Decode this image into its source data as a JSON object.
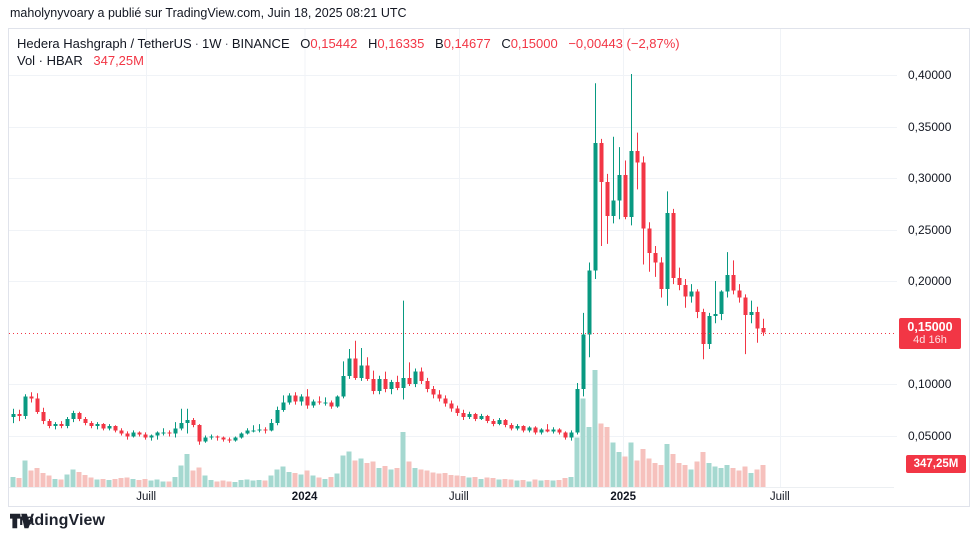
{
  "attribution": "maholynyvoary a publié sur TradingView.com, Juin 18, 2025 08:21 UTC",
  "legend": {
    "symbol_title": "Hedera Hashgraph / TetherUS",
    "separator": "·",
    "interval": "1W",
    "exchange": "BINANCE",
    "ohlc": [
      {
        "label": "O",
        "value": "0,15442"
      },
      {
        "label": "H",
        "value": "0,16335"
      },
      {
        "label": "B",
        "value": "0,14677"
      },
      {
        "label": "C",
        "value": "0,15000"
      }
    ],
    "change": "−0,00443 (−2,87%)",
    "volume_label": "Vol · HBAR",
    "volume_value": "347,25M"
  },
  "colors": {
    "up": "#089981",
    "down": "#f23645",
    "vol_up": "#a5d8d0",
    "vol_down": "#f6c1bd",
    "grid": "#f0f3f7",
    "text": "#131722",
    "badge": "#f23645",
    "border": "#e0e3eb",
    "dotted_line": "#f23645"
  },
  "y_axis": {
    "ticks": [
      {
        "label": "0,40000",
        "value": 0.4
      },
      {
        "label": "0,35000",
        "value": 0.35
      },
      {
        "label": "0,30000",
        "value": 0.3
      },
      {
        "label": "0,25000",
        "value": 0.25
      },
      {
        "label": "0,20000",
        "value": 0.2
      },
      {
        "label": "0,10000",
        "value": 0.1
      },
      {
        "label": "0,05000",
        "value": 0.05
      }
    ]
  },
  "x_axis": {
    "ticks": [
      {
        "label": "Juill",
        "index": 22.2,
        "year": false
      },
      {
        "label": "2024",
        "index": 48.6,
        "year": true
      },
      {
        "label": "Juill",
        "index": 74.3,
        "year": false
      },
      {
        "label": "2025",
        "index": 101.7,
        "year": true
      },
      {
        "label": "Juill",
        "index": 127.8,
        "year": false
      }
    ]
  },
  "price_badge": {
    "price": "0,15000",
    "countdown": "4d 16h",
    "value": 0.15
  },
  "volume_badge": {
    "value": "347,25M"
  },
  "logo": {
    "text": "TradingView"
  },
  "chart_data": {
    "type": "candlestick+volume",
    "title": "Hedera Hashgraph / TetherUS",
    "interval": "1W",
    "exchange": "BINANCE",
    "last": {
      "open": 0.15442,
      "high": 0.16335,
      "low": 0.14677,
      "close": 0.15,
      "change": -0.00443,
      "change_pct": -2.87,
      "volume_m": 347.25
    },
    "price_gridlines": [
      0.4,
      0.35,
      0.3,
      0.25,
      0.2,
      0.1,
      0.05
    ],
    "current_price_line": 0.15,
    "volume_unit": "M",
    "candles_format": [
      "open",
      "high",
      "low",
      "close",
      "volume_m"
    ],
    "candles": [
      [
        0.068,
        0.076,
        0.062,
        0.071,
        160
      ],
      [
        0.071,
        0.075,
        0.064,
        0.069,
        140
      ],
      [
        0.069,
        0.09,
        0.066,
        0.088,
        420
      ],
      [
        0.088,
        0.092,
        0.082,
        0.086,
        260
      ],
      [
        0.086,
        0.091,
        0.071,
        0.073,
        300
      ],
      [
        0.073,
        0.077,
        0.061,
        0.064,
        220
      ],
      [
        0.064,
        0.066,
        0.057,
        0.059,
        180
      ],
      [
        0.059,
        0.063,
        0.056,
        0.061,
        130
      ],
      [
        0.061,
        0.064,
        0.057,
        0.059,
        120
      ],
      [
        0.059,
        0.068,
        0.057,
        0.066,
        200
      ],
      [
        0.066,
        0.074,
        0.063,
        0.072,
        280
      ],
      [
        0.072,
        0.073,
        0.064,
        0.066,
        240
      ],
      [
        0.066,
        0.068,
        0.06,
        0.062,
        190
      ],
      [
        0.062,
        0.064,
        0.057,
        0.059,
        150
      ],
      [
        0.059,
        0.063,
        0.056,
        0.061,
        120
      ],
      [
        0.061,
        0.062,
        0.055,
        0.057,
        130
      ],
      [
        0.057,
        0.061,
        0.055,
        0.059,
        110
      ],
      [
        0.059,
        0.06,
        0.053,
        0.055,
        130
      ],
      [
        0.055,
        0.057,
        0.05,
        0.052,
        140
      ],
      [
        0.052,
        0.054,
        0.046,
        0.049,
        150
      ],
      [
        0.049,
        0.055,
        0.048,
        0.053,
        130
      ],
      [
        0.053,
        0.054,
        0.049,
        0.051,
        110
      ],
      [
        0.051,
        0.053,
        0.046,
        0.048,
        130
      ],
      [
        0.048,
        0.051,
        0.045,
        0.05,
        100
      ],
      [
        0.05,
        0.054,
        0.046,
        0.053,
        120
      ],
      [
        0.053,
        0.057,
        0.05,
        0.053,
        90
      ],
      [
        0.053,
        0.055,
        0.049,
        0.052,
        90
      ],
      [
        0.052,
        0.063,
        0.048,
        0.057,
        160
      ],
      [
        0.057,
        0.076,
        0.055,
        0.062,
        340
      ],
      [
        0.062,
        0.076,
        0.052,
        0.065,
        520
      ],
      [
        0.065,
        0.067,
        0.058,
        0.06,
        260
      ],
      [
        0.06,
        0.061,
        0.041,
        0.044,
        310
      ],
      [
        0.044,
        0.05,
        0.043,
        0.048,
        180
      ],
      [
        0.048,
        0.051,
        0.046,
        0.049,
        110
      ],
      [
        0.049,
        0.05,
        0.045,
        0.048,
        90
      ],
      [
        0.048,
        0.049,
        0.044,
        0.046,
        100
      ],
      [
        0.046,
        0.048,
        0.043,
        0.045,
        90
      ],
      [
        0.045,
        0.049,
        0.044,
        0.048,
        80
      ],
      [
        0.048,
        0.053,
        0.047,
        0.052,
        110
      ],
      [
        0.052,
        0.057,
        0.051,
        0.055,
        120
      ],
      [
        0.055,
        0.06,
        0.053,
        0.055,
        100
      ],
      [
        0.055,
        0.061,
        0.053,
        0.056,
        110
      ],
      [
        0.056,
        0.058,
        0.052,
        0.055,
        100
      ],
      [
        0.055,
        0.066,
        0.054,
        0.062,
        180
      ],
      [
        0.062,
        0.078,
        0.06,
        0.075,
        280
      ],
      [
        0.075,
        0.089,
        0.073,
        0.082,
        320
      ],
      [
        0.082,
        0.091,
        0.08,
        0.089,
        240
      ],
      [
        0.089,
        0.092,
        0.08,
        0.083,
        220
      ],
      [
        0.083,
        0.09,
        0.079,
        0.088,
        200
      ],
      [
        0.088,
        0.095,
        0.076,
        0.079,
        260
      ],
      [
        0.079,
        0.085,
        0.077,
        0.083,
        180
      ],
      [
        0.083,
        0.088,
        0.08,
        0.082,
        150
      ],
      [
        0.082,
        0.087,
        0.079,
        0.082,
        130
      ],
      [
        0.082,
        0.084,
        0.076,
        0.078,
        160
      ],
      [
        0.078,
        0.089,
        0.077,
        0.088,
        210
      ],
      [
        0.088,
        0.122,
        0.086,
        0.108,
        500
      ],
      [
        0.108,
        0.134,
        0.105,
        0.125,
        560
      ],
      [
        0.125,
        0.142,
        0.104,
        0.106,
        420
      ],
      [
        0.106,
        0.135,
        0.103,
        0.118,
        450
      ],
      [
        0.118,
        0.126,
        0.103,
        0.105,
        380
      ],
      [
        0.105,
        0.113,
        0.09,
        0.093,
        400
      ],
      [
        0.093,
        0.108,
        0.09,
        0.105,
        300
      ],
      [
        0.105,
        0.112,
        0.092,
        0.095,
        330
      ],
      [
        0.095,
        0.104,
        0.09,
        0.102,
        280
      ],
      [
        0.102,
        0.108,
        0.094,
        0.096,
        300
      ],
      [
        0.096,
        0.181,
        0.085,
        0.106,
        870
      ],
      [
        0.106,
        0.121,
        0.098,
        0.1,
        400
      ],
      [
        0.1,
        0.115,
        0.097,
        0.112,
        300
      ],
      [
        0.112,
        0.116,
        0.1,
        0.103,
        280
      ],
      [
        0.103,
        0.106,
        0.092,
        0.095,
        260
      ],
      [
        0.095,
        0.098,
        0.086,
        0.09,
        230
      ],
      [
        0.09,
        0.094,
        0.083,
        0.086,
        210
      ],
      [
        0.086,
        0.089,
        0.078,
        0.081,
        220
      ],
      [
        0.081,
        0.084,
        0.073,
        0.076,
        190
      ],
      [
        0.076,
        0.079,
        0.069,
        0.072,
        180
      ],
      [
        0.072,
        0.075,
        0.065,
        0.068,
        170
      ],
      [
        0.068,
        0.073,
        0.066,
        0.071,
        150
      ],
      [
        0.071,
        0.072,
        0.064,
        0.066,
        160
      ],
      [
        0.066,
        0.071,
        0.065,
        0.069,
        130
      ],
      [
        0.069,
        0.07,
        0.062,
        0.064,
        150
      ],
      [
        0.064,
        0.066,
        0.059,
        0.061,
        140
      ],
      [
        0.061,
        0.067,
        0.06,
        0.065,
        120
      ],
      [
        0.065,
        0.066,
        0.058,
        0.06,
        130
      ],
      [
        0.06,
        0.062,
        0.055,
        0.057,
        120
      ],
      [
        0.057,
        0.061,
        0.055,
        0.059,
        100
      ],
      [
        0.059,
        0.06,
        0.053,
        0.055,
        110
      ],
      [
        0.055,
        0.059,
        0.053,
        0.058,
        90
      ],
      [
        0.058,
        0.059,
        0.051,
        0.053,
        120
      ],
      [
        0.053,
        0.057,
        0.051,
        0.056,
        100
      ],
      [
        0.056,
        0.061,
        0.053,
        0.054,
        110
      ],
      [
        0.054,
        0.058,
        0.052,
        0.056,
        100
      ],
      [
        0.056,
        0.057,
        0.051,
        0.053,
        110
      ],
      [
        0.053,
        0.054,
        0.046,
        0.048,
        140
      ],
      [
        0.048,
        0.055,
        0.045,
        0.053,
        160
      ],
      [
        0.053,
        0.101,
        0.051,
        0.095,
        780
      ],
      [
        0.095,
        0.169,
        0.088,
        0.148,
        1400
      ],
      [
        0.148,
        0.218,
        0.126,
        0.21,
        950
      ],
      [
        0.21,
        0.392,
        0.202,
        0.334,
        1850
      ],
      [
        0.334,
        0.338,
        0.234,
        0.296,
        1000
      ],
      [
        0.296,
        0.304,
        0.236,
        0.263,
        950
      ],
      [
        0.263,
        0.34,
        0.256,
        0.278,
        700
      ],
      [
        0.278,
        0.33,
        0.26,
        0.303,
        550
      ],
      [
        0.303,
        0.317,
        0.26,
        0.262,
        480
      ],
      [
        0.262,
        0.401,
        0.254,
        0.326,
        700
      ],
      [
        0.326,
        0.344,
        0.289,
        0.315,
        420
      ],
      [
        0.315,
        0.321,
        0.216,
        0.251,
        600
      ],
      [
        0.251,
        0.257,
        0.209,
        0.227,
        450
      ],
      [
        0.227,
        0.234,
        0.204,
        0.218,
        380
      ],
      [
        0.218,
        0.223,
        0.184,
        0.192,
        350
      ],
      [
        0.192,
        0.287,
        0.176,
        0.266,
        680
      ],
      [
        0.266,
        0.27,
        0.197,
        0.203,
        520
      ],
      [
        0.203,
        0.213,
        0.191,
        0.196,
        380
      ],
      [
        0.196,
        0.202,
        0.174,
        0.185,
        350
      ],
      [
        0.185,
        0.197,
        0.179,
        0.19,
        280
      ],
      [
        0.19,
        0.192,
        0.164,
        0.17,
        400
      ],
      [
        0.17,
        0.173,
        0.124,
        0.139,
        550
      ],
      [
        0.139,
        0.169,
        0.134,
        0.166,
        380
      ],
      [
        0.166,
        0.2,
        0.159,
        0.168,
        320
      ],
      [
        0.168,
        0.191,
        0.162,
        0.19,
        300
      ],
      [
        0.19,
        0.228,
        0.184,
        0.206,
        350
      ],
      [
        0.206,
        0.22,
        0.187,
        0.191,
        300
      ],
      [
        0.191,
        0.197,
        0.179,
        0.184,
        260
      ],
      [
        0.184,
        0.187,
        0.129,
        0.167,
        320
      ],
      [
        0.167,
        0.181,
        0.159,
        0.17,
        220
      ],
      [
        0.17,
        0.175,
        0.14,
        0.154,
        280
      ],
      [
        0.15442,
        0.16335,
        0.14677,
        0.15,
        347.25
      ]
    ]
  }
}
